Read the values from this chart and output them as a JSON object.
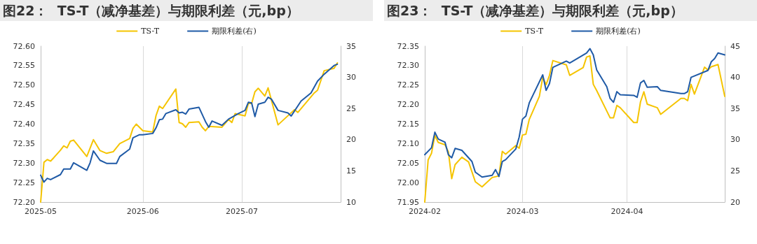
{
  "chart_data": [
    {
      "type": "line",
      "title": "图22：  TS-T（减净基差）与期限利差（元,bp）",
      "legend": "top",
      "grid": "x",
      "xlim": [
        "2025-05-01",
        "2025-07-31"
      ],
      "xticks": [
        "2025-05",
        "2025-06",
        "2025-07"
      ],
      "ylim": [
        72.2,
        72.6
      ],
      "yticks": [
        {
          "value": 72.2,
          "label": "72.20"
        },
        {
          "value": 72.25,
          "label": "72.25"
        },
        {
          "value": 72.3,
          "label": "72.30"
        },
        {
          "value": 72.35,
          "label": "72.35"
        },
        {
          "value": 72.4,
          "label": "72.40"
        },
        {
          "value": 72.45,
          "label": "72.45"
        },
        {
          "value": 72.5,
          "label": "72.50"
        },
        {
          "value": 72.55,
          "label": "72.55"
        },
        {
          "value": 72.6,
          "label": "72.60"
        }
      ],
      "y2lim": [
        10,
        35
      ],
      "y2ticks": [
        10,
        15,
        20,
        25,
        30,
        35
      ],
      "series": [
        {
          "name": "TS-T",
          "color": "#f5c400",
          "x": [
            "2025-05-01",
            "2025-05-02",
            "2025-05-03",
            "2025-05-04",
            "2025-05-05",
            "2025-05-07",
            "2025-05-08",
            "2025-05-09",
            "2025-05-10",
            "2025-05-11",
            "2025-05-15",
            "2025-05-17",
            "2025-05-19",
            "2025-05-21",
            "2025-05-23",
            "2025-05-25",
            "2025-05-28",
            "2025-05-29",
            "2025-05-30",
            "2025-06-01",
            "2025-06-04",
            "2025-06-05",
            "2025-06-06",
            "2025-06-07",
            "2025-06-11",
            "2025-06-12",
            "2025-06-13",
            "2025-06-14",
            "2025-06-15",
            "2025-06-18",
            "2025-06-19",
            "2025-06-20",
            "2025-06-21",
            "2025-06-25",
            "2025-06-27",
            "2025-06-28",
            "2025-06-29",
            "2025-07-02",
            "2025-07-03",
            "2025-07-04",
            "2025-07-05",
            "2025-07-06",
            "2025-07-08",
            "2025-07-09",
            "2025-07-12",
            "2025-07-17",
            "2025-07-18",
            "2025-07-23",
            "2025-07-24",
            "2025-07-26",
            "2025-07-29",
            "2025-07-30"
          ],
          "values": [
            72.2,
            72.302,
            72.309,
            72.305,
            72.314,
            72.333,
            72.344,
            72.339,
            72.356,
            72.359,
            72.317,
            72.36,
            72.332,
            72.325,
            72.329,
            72.35,
            72.363,
            72.389,
            72.4,
            72.383,
            72.38,
            72.422,
            72.446,
            72.44,
            72.49,
            72.404,
            72.401,
            72.392,
            72.404,
            72.406,
            72.392,
            72.383,
            72.394,
            72.392,
            72.412,
            72.404,
            72.427,
            72.421,
            72.453,
            72.453,
            72.483,
            72.492,
            72.472,
            72.493,
            72.398,
            72.437,
            72.43,
            72.48,
            72.487,
            72.537,
            72.543,
            72.557
          ]
        },
        {
          "name": "期限利差(右)",
          "color": "#1f5aa6",
          "axis": "y2",
          "x": [
            "2025-05-01",
            "2025-05-02",
            "2025-05-03",
            "2025-05-04",
            "2025-05-07",
            "2025-05-08",
            "2025-05-10",
            "2025-05-11",
            "2025-05-15",
            "2025-05-16",
            "2025-05-17",
            "2025-05-19",
            "2025-05-21",
            "2025-05-24",
            "2025-05-25",
            "2025-05-28",
            "2025-05-29",
            "2025-05-31",
            "2025-06-01",
            "2025-06-04",
            "2025-06-05",
            "2025-06-06",
            "2025-06-07",
            "2025-06-08",
            "2025-06-11",
            "2025-06-12",
            "2025-06-13",
            "2025-06-14",
            "2025-06-15",
            "2025-06-18",
            "2025-06-20",
            "2025-06-21",
            "2025-06-22",
            "2025-06-25",
            "2025-06-27",
            "2025-06-30",
            "2025-07-02",
            "2025-07-03",
            "2025-07-04",
            "2025-07-05",
            "2025-07-06",
            "2025-07-08",
            "2025-07-09",
            "2025-07-10",
            "2025-07-12",
            "2025-07-15",
            "2025-07-16",
            "2025-07-19",
            "2025-07-22",
            "2025-07-24",
            "2025-07-26",
            "2025-07-29",
            "2025-07-30"
          ],
          "values": [
            14.3,
            13.2,
            13.8,
            13.6,
            14.4,
            15.3,
            15.3,
            16.3,
            15.1,
            16.3,
            18.2,
            16.7,
            16.2,
            16.2,
            17.3,
            18.5,
            20.3,
            20.8,
            20.8,
            21.0,
            21.9,
            23.2,
            23.3,
            24.2,
            24.8,
            24.3,
            24.4,
            24.1,
            24.9,
            25.2,
            22.9,
            22.0,
            23.0,
            22.3,
            23.3,
            24.2,
            24.7,
            26.0,
            25.9,
            23.7,
            25.7,
            26.0,
            26.8,
            26.5,
            24.7,
            24.3,
            23.8,
            26.2,
            27.5,
            29.4,
            30.5,
            31.9,
            32.1
          ]
        }
      ]
    },
    {
      "type": "line",
      "title": "图23：  TS-T（减净基差）与期限利差（元,bp）",
      "legend": "top",
      "grid": "x",
      "xlim": [
        "2024-02-01",
        "2024-04-30"
      ],
      "xticks": [
        "2024-02",
        "2024-03",
        "2024-04"
      ],
      "ylim": [
        71.95,
        72.35
      ],
      "yticks": [
        {
          "value": 71.95,
          "label": "71.95"
        },
        {
          "value": 72.0,
          "label": "72.00"
        },
        {
          "value": 72.05,
          "label": "72.05"
        },
        {
          "value": 72.1,
          "label": "72.10"
        },
        {
          "value": 72.15,
          "label": "72.15"
        },
        {
          "value": 72.2,
          "label": "72.20"
        },
        {
          "value": 72.25,
          "label": "72.25"
        },
        {
          "value": 72.3,
          "label": "72.30"
        },
        {
          "value": 72.35,
          "label": "72.35"
        }
      ],
      "y2lim": [
        20,
        45
      ],
      "y2ticks": [
        20,
        25,
        30,
        35,
        40,
        45
      ],
      "series": [
        {
          "name": "TS-T",
          "color": "#f5c400",
          "x": [
            "2024-02-01",
            "2024-02-02",
            "2024-02-03",
            "2024-02-04",
            "2024-02-05",
            "2024-02-07",
            "2024-02-08",
            "2024-02-09",
            "2024-02-10",
            "2024-02-12",
            "2024-02-14",
            "2024-02-16",
            "2024-02-18",
            "2024-02-21",
            "2024-02-23",
            "2024-02-24",
            "2024-02-25",
            "2024-02-28",
            "2024-02-29",
            "2024-03-01",
            "2024-03-02",
            "2024-03-03",
            "2024-03-06",
            "2024-03-07",
            "2024-03-08",
            "2024-03-09",
            "2024-03-10",
            "2024-03-14",
            "2024-03-15",
            "2024-03-19",
            "2024-03-20",
            "2024-03-21",
            "2024-03-22",
            "2024-03-23",
            "2024-03-27",
            "2024-03-28",
            "2024-03-29",
            "2024-03-30",
            "2024-04-03",
            "2024-04-04",
            "2024-04-05",
            "2024-04-06",
            "2024-04-07",
            "2024-04-10",
            "2024-04-11",
            "2024-04-17",
            "2024-04-18",
            "2024-04-19",
            "2024-04-20",
            "2024-04-21",
            "2024-04-24",
            "2024-04-25",
            "2024-04-26",
            "2024-04-28",
            "2024-04-30"
          ],
          "values": [
            71.95,
            72.058,
            72.075,
            72.121,
            72.103,
            72.097,
            72.079,
            72.01,
            72.046,
            72.065,
            72.053,
            72.002,
            71.989,
            72.013,
            72.017,
            72.08,
            72.073,
            72.095,
            72.088,
            72.122,
            72.124,
            72.162,
            72.221,
            72.27,
            72.251,
            72.275,
            72.313,
            72.302,
            72.275,
            72.295,
            72.322,
            72.325,
            72.252,
            72.236,
            72.166,
            72.166,
            72.198,
            72.192,
            72.154,
            72.154,
            72.207,
            72.233,
            72.201,
            72.192,
            72.175,
            72.216,
            72.216,
            72.21,
            72.252,
            72.227,
            72.296,
            72.289,
            72.297,
            72.303,
            72.221
          ]
        },
        {
          "name": "期限利差(右)",
          "color": "#1f5aa6",
          "axis": "y2",
          "x": [
            "2024-02-01",
            "2024-02-03",
            "2024-02-04",
            "2024-02-05",
            "2024-02-07",
            "2024-02-08",
            "2024-02-09",
            "2024-02-10",
            "2024-02-12",
            "2024-02-15",
            "2024-02-16",
            "2024-02-18",
            "2024-02-21",
            "2024-02-22",
            "2024-02-23",
            "2024-02-24",
            "2024-02-25",
            "2024-02-28",
            "2024-02-29",
            "2024-03-01",
            "2024-03-02",
            "2024-03-03",
            "2024-03-07",
            "2024-03-08",
            "2024-03-09",
            "2024-03-10",
            "2024-03-14",
            "2024-03-15",
            "2024-03-20",
            "2024-03-21",
            "2024-03-22",
            "2024-03-23",
            "2024-03-26",
            "2024-03-27",
            "2024-03-28",
            "2024-03-29",
            "2024-03-30",
            "2024-04-03",
            "2024-04-04",
            "2024-04-05",
            "2024-04-06",
            "2024-04-07",
            "2024-04-10",
            "2024-04-11",
            "2024-04-17",
            "2024-04-18",
            "2024-04-19",
            "2024-04-20",
            "2024-04-25",
            "2024-04-26",
            "2024-04-27",
            "2024-04-28",
            "2024-04-30"
          ],
          "values": [
            27.6,
            28.7,
            31.2,
            30.1,
            29.6,
            27.6,
            27.1,
            28.6,
            28.3,
            26.5,
            24.8,
            24.0,
            24.3,
            25.2,
            24.1,
            26.5,
            26.8,
            28.5,
            30.4,
            33.3,
            33.8,
            35.9,
            40.4,
            37.9,
            39.0,
            41.6,
            42.6,
            42.3,
            43.9,
            44.6,
            43.6,
            41.2,
            38.5,
            36.6,
            36.0,
            37.7,
            37.2,
            37.1,
            36.8,
            39.1,
            39.5,
            38.4,
            38.5,
            37.9,
            37.4,
            37.4,
            37.7,
            40.0,
            41.1,
            42.5,
            43.0,
            43.9,
            43.6
          ]
        }
      ]
    }
  ]
}
